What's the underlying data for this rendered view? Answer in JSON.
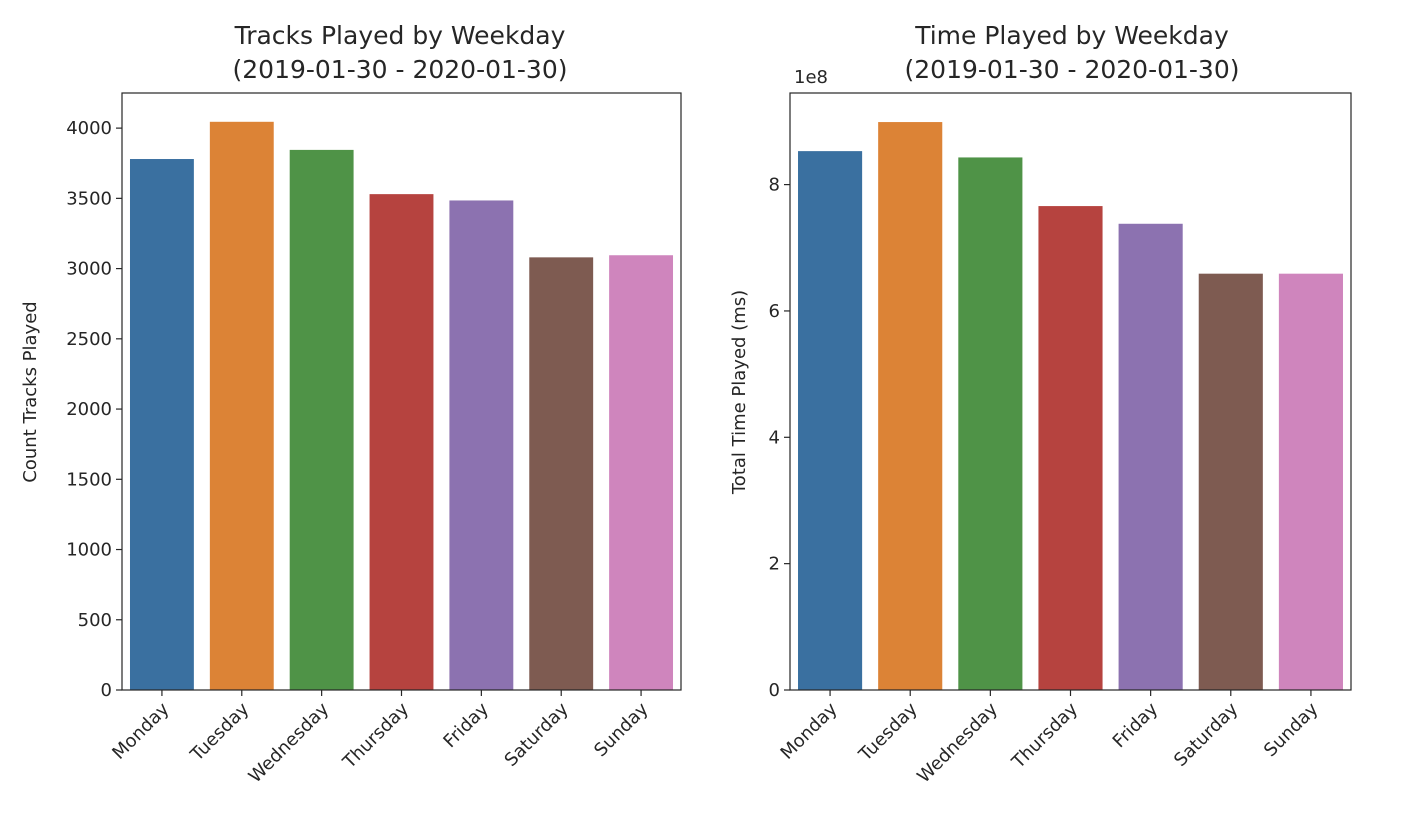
{
  "chart_data": [
    {
      "type": "bar",
      "title_line1": "Tracks Played by Weekday",
      "title_line2": "(2019-01-30 - 2020-01-30)",
      "xlabel": "",
      "ylabel": "Count Tracks Played",
      "categories": [
        "Monday",
        "Tuesday",
        "Wednesday",
        "Thursday",
        "Friday",
        "Saturday",
        "Sunday"
      ],
      "values": [
        3780,
        4045,
        3845,
        3530,
        3485,
        3080,
        3095
      ],
      "ylim": [
        0,
        4250
      ],
      "yticks": [
        0,
        500,
        1000,
        1500,
        2000,
        2500,
        3000,
        3500,
        4000
      ],
      "ytick_labels": [
        "0",
        "500",
        "1000",
        "1500",
        "2000",
        "2500",
        "3000",
        "3500",
        "4000"
      ],
      "offset_label": "",
      "colors": [
        "#3a70a0",
        "#dc8336",
        "#4f9347",
        "#b6433f",
        "#8c72b0",
        "#7e5b51",
        "#cf85bd"
      ],
      "grid": false
    },
    {
      "type": "bar",
      "title_line1": "Time Played by Weekday",
      "title_line2": "(2019-01-30 - 2020-01-30)",
      "xlabel": "",
      "ylabel": "Total Time Played (ms)",
      "categories": [
        "Monday",
        "Tuesday",
        "Wednesday",
        "Thursday",
        "Friday",
        "Saturday",
        "Sunday"
      ],
      "values": [
        853000000,
        899000000,
        843000000,
        766000000,
        738000000,
        659000000,
        659000000
      ],
      "ylim": [
        0,
        945000000
      ],
      "yticks": [
        0,
        200000000,
        400000000,
        600000000,
        800000000
      ],
      "ytick_labels": [
        "0",
        "2",
        "4",
        "6",
        "8"
      ],
      "offset_label": "1e8",
      "colors": [
        "#3a70a0",
        "#dc8336",
        "#4f9347",
        "#b6433f",
        "#8c72b0",
        "#7e5b51",
        "#cf85bd"
      ],
      "grid": false
    }
  ]
}
